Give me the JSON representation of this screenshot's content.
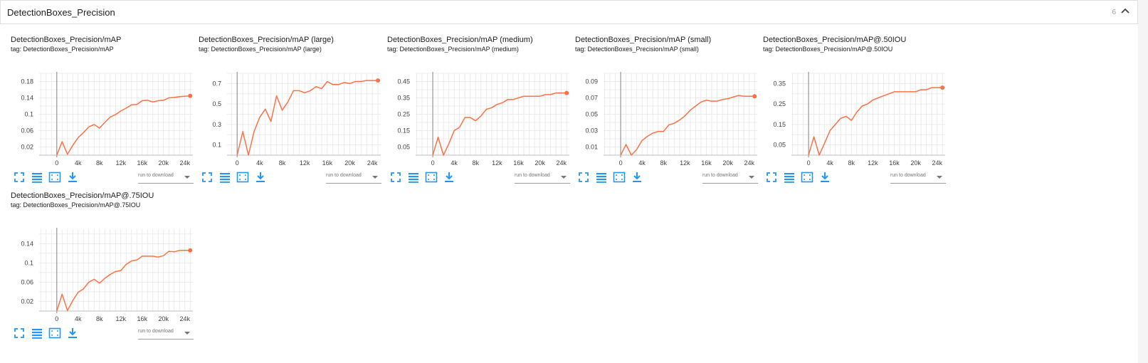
{
  "section": {
    "title": "DetectionBoxes_Precision",
    "count": "6"
  },
  "toolbar": {
    "download_placeholder": "run to download",
    "accent": "#2196f3"
  },
  "chart_data": [
    {
      "type": "line",
      "title": "DetectionBoxes_Precision/mAP",
      "tag": "tag: DetectionBoxes_Precision/mAP",
      "xticks": [
        "0",
        "4k",
        "8k",
        "12k",
        "16k",
        "20k",
        "24k"
      ],
      "yticks": [
        "0.02",
        "0.06",
        "0.1",
        "0.14",
        "0.18"
      ],
      "ylim": [
        0,
        0.2
      ],
      "xlim": [
        -3300,
        25500
      ],
      "grid": true,
      "series": [
        {
          "color": "#ff7043",
          "x": [
            0,
            1000,
            2000,
            3000,
            4000,
            5000,
            6000,
            7000,
            8000,
            9000,
            10000,
            11000,
            12000,
            13000,
            14000,
            15000,
            16000,
            17000,
            18000,
            19000,
            20000,
            21000,
            22000,
            23000,
            24000,
            25000
          ],
          "y": [
            0.0,
            0.033,
            0.002,
            0.024,
            0.043,
            0.055,
            0.069,
            0.075,
            0.066,
            0.08,
            0.093,
            0.099,
            0.108,
            0.115,
            0.123,
            0.124,
            0.133,
            0.134,
            0.13,
            0.133,
            0.134,
            0.14,
            0.141,
            0.143,
            0.144,
            0.145
          ]
        }
      ]
    },
    {
      "type": "line",
      "title": "DetectionBoxes_Precision/mAP (large)",
      "tag": "tag: DetectionBoxes_Precision/mAP (large)",
      "xticks": [
        "0",
        "4k",
        "8k",
        "12k",
        "16k",
        "20k",
        "24k"
      ],
      "yticks": [
        "0.1",
        "0.3",
        "0.5",
        "0.7"
      ],
      "ylim": [
        0,
        0.8
      ],
      "xlim": [
        -1800,
        25500
      ],
      "grid": true,
      "series": [
        {
          "color": "#ff7043",
          "x": [
            0,
            1000,
            2000,
            3000,
            4000,
            5000,
            6000,
            7000,
            8000,
            9000,
            10000,
            11000,
            12000,
            13000,
            14000,
            15000,
            16000,
            17000,
            18000,
            19000,
            20000,
            21000,
            22000,
            23000,
            24000,
            25000
          ],
          "y": [
            0.0,
            0.23,
            0.0,
            0.23,
            0.37,
            0.45,
            0.33,
            0.58,
            0.44,
            0.52,
            0.63,
            0.63,
            0.61,
            0.63,
            0.67,
            0.65,
            0.72,
            0.69,
            0.69,
            0.71,
            0.7,
            0.72,
            0.72,
            0.73,
            0.73,
            0.73
          ]
        }
      ]
    },
    {
      "type": "line",
      "title": "DetectionBoxes_Precision/mAP (medium)",
      "tag": "tag: DetectionBoxes_Precision/mAP (medium)",
      "xticks": [
        "0",
        "4k",
        "8k",
        "12k",
        "16k",
        "20k",
        "24k"
      ],
      "yticks": [
        "0.05",
        "0.15",
        "0.25",
        "0.35",
        "0.45"
      ],
      "ylim": [
        0,
        0.5
      ],
      "xlim": [
        -3200,
        25500
      ],
      "grid": true,
      "series": [
        {
          "color": "#ff7043",
          "x": [
            0,
            1000,
            2000,
            3000,
            4000,
            5000,
            6000,
            7000,
            8000,
            9000,
            10000,
            11000,
            12000,
            13000,
            14000,
            15000,
            16000,
            17000,
            18000,
            19000,
            20000,
            21000,
            22000,
            23000,
            24000,
            25000
          ],
          "y": [
            0.0,
            0.11,
            0.0,
            0.07,
            0.15,
            0.17,
            0.23,
            0.23,
            0.21,
            0.24,
            0.28,
            0.29,
            0.31,
            0.32,
            0.34,
            0.34,
            0.35,
            0.36,
            0.36,
            0.36,
            0.36,
            0.37,
            0.37,
            0.38,
            0.38,
            0.38
          ]
        }
      ]
    },
    {
      "type": "line",
      "title": "DetectionBoxes_Precision/mAP (small)",
      "tag": "tag: DetectionBoxes_Precision/mAP (small)",
      "xticks": [
        "0",
        "4k",
        "8k",
        "12k",
        "16k",
        "20k",
        "24k"
      ],
      "yticks": [
        "0.01",
        "0.03",
        "0.05",
        "0.07",
        "0.09"
      ],
      "ylim": [
        0,
        0.1
      ],
      "xlim": [
        -3200,
        25500
      ],
      "grid": true,
      "series": [
        {
          "color": "#ff7043",
          "x": [
            0,
            1000,
            2000,
            3000,
            4000,
            5000,
            6000,
            7000,
            8000,
            9000,
            10000,
            11000,
            12000,
            13000,
            14000,
            15000,
            16000,
            17000,
            18000,
            19000,
            20000,
            21000,
            22000,
            23000,
            24000,
            25000
          ],
          "y": [
            0.0,
            0.013,
            0.0,
            0.007,
            0.018,
            0.023,
            0.027,
            0.029,
            0.029,
            0.037,
            0.039,
            0.043,
            0.048,
            0.055,
            0.06,
            0.065,
            0.067,
            0.066,
            0.066,
            0.068,
            0.069,
            0.071,
            0.073,
            0.072,
            0.072,
            0.072
          ]
        }
      ]
    },
    {
      "type": "line",
      "title": "DetectionBoxes_Precision/mAP@.50IOU",
      "tag": "tag: DetectionBoxes_Precision/mAP@.50IOU",
      "xticks": [
        "0",
        "4k",
        "8k",
        "12k",
        "16k",
        "20k",
        "24k"
      ],
      "yticks": [
        "0.05",
        "0.15",
        "0.25",
        "0.35"
      ],
      "ylim": [
        0,
        0.4
      ],
      "xlim": [
        -3200,
        25500
      ],
      "grid": true,
      "series": [
        {
          "color": "#ff7043",
          "x": [
            0,
            1000,
            2000,
            3000,
            4000,
            5000,
            6000,
            7000,
            8000,
            9000,
            10000,
            11000,
            12000,
            13000,
            14000,
            15000,
            16000,
            17000,
            18000,
            19000,
            20000,
            21000,
            22000,
            23000,
            24000,
            25000
          ],
          "y": [
            0.0,
            0.09,
            0.0,
            0.06,
            0.12,
            0.15,
            0.18,
            0.19,
            0.17,
            0.21,
            0.24,
            0.25,
            0.27,
            0.28,
            0.29,
            0.3,
            0.31,
            0.31,
            0.31,
            0.31,
            0.31,
            0.32,
            0.32,
            0.33,
            0.33,
            0.33
          ]
        }
      ]
    },
    {
      "type": "line",
      "title": "DetectionBoxes_Precision/mAP@.75IOU",
      "tag": "tag: DetectionBoxes_Precision/mAP@.75IOU",
      "xticks": [
        "0",
        "4k",
        "8k",
        "12k",
        "16k",
        "20k",
        "24k"
      ],
      "yticks": [
        "0.02",
        "0.06",
        "0.1",
        "0.14"
      ],
      "ylim": [
        0,
        0.17
      ],
      "xlim": [
        -3300,
        25500
      ],
      "grid": true,
      "series": [
        {
          "color": "#ff7043",
          "x": [
            0,
            1000,
            2000,
            3000,
            4000,
            5000,
            6000,
            7000,
            8000,
            9000,
            10000,
            11000,
            12000,
            13000,
            14000,
            15000,
            16000,
            17000,
            18000,
            19000,
            20000,
            21000,
            22000,
            23000,
            24000,
            25000
          ],
          "y": [
            0.0,
            0.035,
            0.001,
            0.022,
            0.039,
            0.046,
            0.06,
            0.066,
            0.058,
            0.068,
            0.076,
            0.082,
            0.084,
            0.097,
            0.104,
            0.106,
            0.114,
            0.114,
            0.114,
            0.112,
            0.115,
            0.124,
            0.123,
            0.126,
            0.126,
            0.126
          ]
        }
      ]
    }
  ]
}
